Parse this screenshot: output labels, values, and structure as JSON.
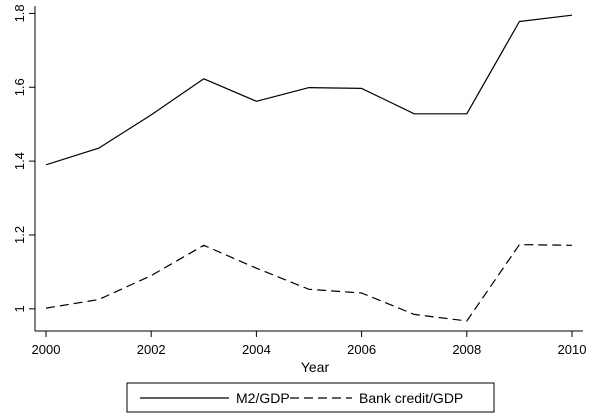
{
  "chart_data": {
    "type": "line",
    "xlabel": "Year",
    "ylabel": "",
    "xlim": [
      2000,
      2010
    ],
    "ylim": [
      0.94,
      1.82
    ],
    "x_ticks": [
      2000,
      2002,
      2004,
      2006,
      2008,
      2010
    ],
    "y_ticks": [
      1,
      1.2,
      1.4,
      1.6,
      1.8
    ],
    "y_tick_labels": [
      "1",
      "1.2",
      "1.4",
      "1.6",
      "1.8"
    ],
    "grid": false,
    "legend_position": "bottom",
    "series": [
      {
        "name": "M2/GDP",
        "style": "solid",
        "x": [
          2000,
          2001,
          2002,
          2003,
          2004,
          2005,
          2006,
          2007,
          2008,
          2009,
          2010
        ],
        "values": [
          1.39,
          1.435,
          1.525,
          1.623,
          1.562,
          1.599,
          1.597,
          1.528,
          1.528,
          1.778,
          1.795
        ]
      },
      {
        "name": "Bank credit/GDP",
        "style": "dashed",
        "x": [
          2000,
          2001,
          2002,
          2003,
          2004,
          2005,
          2006,
          2007,
          2008,
          2009,
          2010
        ],
        "values": [
          1.002,
          1.025,
          1.09,
          1.172,
          1.11,
          1.053,
          1.043,
          0.985,
          0.967,
          1.174,
          1.172
        ]
      }
    ]
  }
}
